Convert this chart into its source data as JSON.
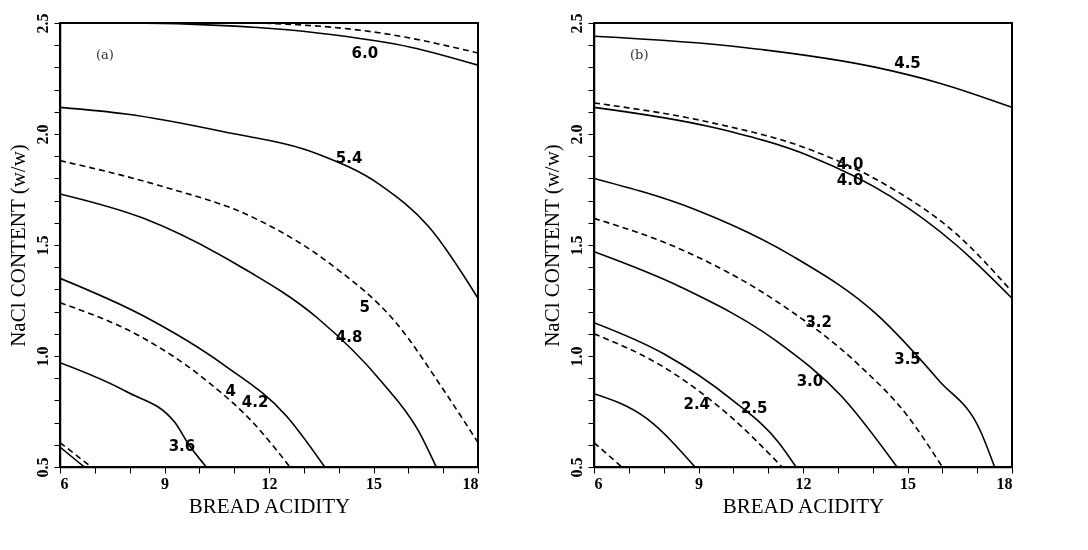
{
  "chart_data": [
    {
      "type": "line",
      "xlabel": "BREAD ACIDITY",
      "ylabel": "NaCl CONTENT (w/w)",
      "annotations": [
        "(a)"
      ],
      "xlim": [
        6,
        18
      ],
      "ylim": [
        0.5,
        2.5
      ],
      "xticks": [
        6,
        {
          "value": 7,
          "label": null
        },
        {
          "value": 8,
          "label": null
        },
        9,
        {
          "value": 10,
          "label": null
        },
        {
          "value": 11,
          "label": null
        },
        12,
        {
          "value": 13,
          "label": null
        },
        {
          "value": 14,
          "label": null
        },
        15,
        {
          "value": 16,
          "label": null
        },
        {
          "value": 17,
          "label": null
        },
        18
      ],
      "yticks": [
        0.5,
        {
          "value": 0.6,
          "label": null
        },
        {
          "value": 0.7,
          "label": null
        },
        {
          "value": 0.8,
          "label": null
        },
        {
          "value": 0.9,
          "label": null
        },
        {
          "value": 1,
          "label": "1.0"
        },
        {
          "value": 1.1,
          "label": null
        },
        {
          "value": 1.2,
          "label": null
        },
        {
          "value": 1.3,
          "label": null
        },
        {
          "value": 1.4,
          "label": null
        },
        1.5,
        {
          "value": 1.6,
          "label": null
        },
        {
          "value": 1.7,
          "label": null
        },
        {
          "value": 1.8,
          "label": null
        },
        {
          "value": 1.9,
          "label": null
        },
        {
          "value": 2,
          "label": "2.0"
        },
        {
          "value": 2.1,
          "label": null
        },
        {
          "value": 2.2,
          "label": null
        },
        {
          "value": 2.3,
          "label": null
        },
        {
          "value": 2.4,
          "label": null
        },
        2.5
      ],
      "grid": false,
      "marker": "none",
      "series": [
        {
          "name": "6.0",
          "color": "#000000",
          "line_style": "solid",
          "x": [
            7.9,
            9.7,
            13.4,
            16.1,
            18
          ],
          "values": [
            2.5,
            2.495,
            2.455,
            2.39,
            2.31
          ]
        },
        {
          "color": "#000000",
          "line_style": "dashed",
          "x": [
            11.6,
            12.5,
            15.2,
            18
          ],
          "values": [
            2.5,
            2.495,
            2.455,
            2.365
          ]
        },
        {
          "name": "5.4",
          "color": "#000000",
          "line_style": "solid",
          "x": [
            6,
            7.9,
            10.7,
            13.4,
            15.2,
            16.6,
            18
          ],
          "values": [
            2.12,
            2.09,
            2.01,
            1.91,
            1.77,
            1.58,
            1.26
          ]
        },
        {
          "name": "5",
          "color": "#000000",
          "line_style": "dashed",
          "x": [
            6,
            8.8,
            11.6,
            13.8,
            15.7,
            17,
            18
          ],
          "values": [
            1.88,
            1.77,
            1.62,
            1.41,
            1.14,
            0.85,
            0.61
          ]
        },
        {
          "name": "4.8",
          "color": "#000000",
          "line_style": "solid",
          "x": [
            6,
            8.4,
            11.1,
            13.4,
            15.2,
            16.3,
            16.8
          ],
          "values": [
            1.73,
            1.62,
            1.41,
            1.17,
            0.89,
            0.66,
            0.5
          ]
        },
        {
          "name": "4.2",
          "color": "#000000",
          "line_style": "solid",
          "x": [
            6,
            8.4,
            10.7,
            12.5,
            13.6
          ],
          "values": [
            1.35,
            1.18,
            0.96,
            0.73,
            0.5
          ]
        },
        {
          "name": "4",
          "color": "#000000",
          "line_style": "dashed",
          "x": [
            6,
            8.4,
            10.2,
            11.6,
            12.6
          ],
          "values": [
            1.24,
            1.08,
            0.89,
            0.69,
            0.5
          ]
        },
        {
          "name": "3.6",
          "color": "#000000",
          "line_style": "solid",
          "x": [
            6,
            7.9,
            9.3,
            9.7,
            10.2
          ],
          "values": [
            0.97,
            0.84,
            0.7,
            0.6,
            0.5
          ]
        },
        {
          "color": "#000000",
          "line_style": "dashed",
          "x": [
            6,
            6.9
          ],
          "values": [
            0.61,
            0.5
          ]
        },
        {
          "color": "#000000",
          "line_style": "solid",
          "x": [
            6,
            6.7
          ],
          "values": [
            0.59,
            0.5
          ]
        }
      ]
    },
    {
      "type": "line",
      "xlabel": "BREAD ACIDITY",
      "ylabel": "NaCl CONTENT (w/w)",
      "annotations": [
        "(b)"
      ],
      "xlim": [
        6,
        18
      ],
      "ylim": [
        0.5,
        2.5
      ],
      "xticks": [
        6,
        {
          "value": 7,
          "label": null
        },
        {
          "value": 8,
          "label": null
        },
        9,
        {
          "value": 10,
          "label": null
        },
        {
          "value": 11,
          "label": null
        },
        12,
        {
          "value": 13,
          "label": null
        },
        {
          "value": 14,
          "label": null
        },
        15,
        {
          "value": 16,
          "label": null
        },
        {
          "value": 17,
          "label": null
        },
        18
      ],
      "yticks": [
        0.5,
        {
          "value": 0.6,
          "label": null
        },
        {
          "value": 0.7,
          "label": null
        },
        {
          "value": 0.8,
          "label": null
        },
        {
          "value": 0.9,
          "label": null
        },
        {
          "value": 1,
          "label": "1.0"
        },
        {
          "value": 1.1,
          "label": null
        },
        {
          "value": 1.2,
          "label": null
        },
        {
          "value": 1.3,
          "label": null
        },
        {
          "value": 1.4,
          "label": null
        },
        1.5,
        {
          "value": 1.6,
          "label": null
        },
        {
          "value": 1.7,
          "label": null
        },
        {
          "value": 1.8,
          "label": null
        },
        {
          "value": 1.9,
          "label": null
        },
        {
          "value": 2,
          "label": "2.0"
        },
        {
          "value": 2.1,
          "label": null
        },
        {
          "value": 2.2,
          "label": null
        },
        {
          "value": 2.3,
          "label": null
        },
        {
          "value": 2.4,
          "label": null
        },
        2.5
      ],
      "grid": false,
      "marker": "none",
      "series": [
        {
          "name": "4.5",
          "color": "#000000",
          "line_style": "solid",
          "x": [
            6,
            10.3,
            14.1,
            15.9,
            18
          ],
          "values": [
            2.44,
            2.39,
            2.3,
            2.23,
            2.12
          ]
        },
        {
          "name": "4.0",
          "color": "#000000",
          "line_style": "dashed",
          "x": [
            6,
            9.4,
            12.2,
            14.5,
            16.4,
            18
          ],
          "values": [
            2.14,
            2.05,
            1.93,
            1.76,
            1.55,
            1.29
          ]
        },
        {
          "name": "4.0",
          "color": "#000000",
          "line_style": "solid",
          "x": [
            6,
            9.4,
            12.2,
            14.5,
            16.4,
            18
          ],
          "values": [
            2.12,
            2.03,
            1.9,
            1.72,
            1.5,
            1.26
          ]
        },
        {
          "name": "3.5",
          "color": "#000000",
          "line_style": "solid",
          "x": [
            6,
            8.9,
            11.7,
            14.1,
            15.9,
            17.1,
            17.5
          ],
          "values": [
            1.8,
            1.66,
            1.45,
            1.19,
            0.89,
            0.66,
            0.5
          ]
        },
        {
          "name": "3.2",
          "color": "#000000",
          "line_style": "dashed",
          "x": [
            6,
            8.5,
            11.3,
            13.6,
            15,
            16
          ],
          "values": [
            1.62,
            1.48,
            1.24,
            0.96,
            0.73,
            0.5
          ]
        },
        {
          "name": "3.0",
          "color": "#000000",
          "line_style": "solid",
          "x": [
            6,
            8.5,
            11.3,
            13.1,
            14.7
          ],
          "values": [
            1.47,
            1.31,
            1.06,
            0.82,
            0.5
          ]
        },
        {
          "name": "2.5",
          "color": "#000000",
          "line_style": "solid",
          "x": [
            6,
            8,
            9.9,
            11.3,
            11.8
          ],
          "values": [
            1.15,
            1.01,
            0.81,
            0.61,
            0.5
          ]
        },
        {
          "name": "2.4",
          "color": "#000000",
          "line_style": "dashed",
          "x": [
            6,
            8,
            9.9,
            11.4
          ],
          "values": [
            1.1,
            0.95,
            0.73,
            0.5
          ]
        },
        {
          "color": "#000000",
          "line_style": "solid",
          "x": [
            6,
            7.5,
            8.9
          ],
          "values": [
            0.83,
            0.72,
            0.5
          ]
        },
        {
          "color": "#000000",
          "line_style": "dashed",
          "x": [
            6,
            6.8
          ],
          "values": [
            0.61,
            0.5
          ]
        }
      ]
    }
  ]
}
